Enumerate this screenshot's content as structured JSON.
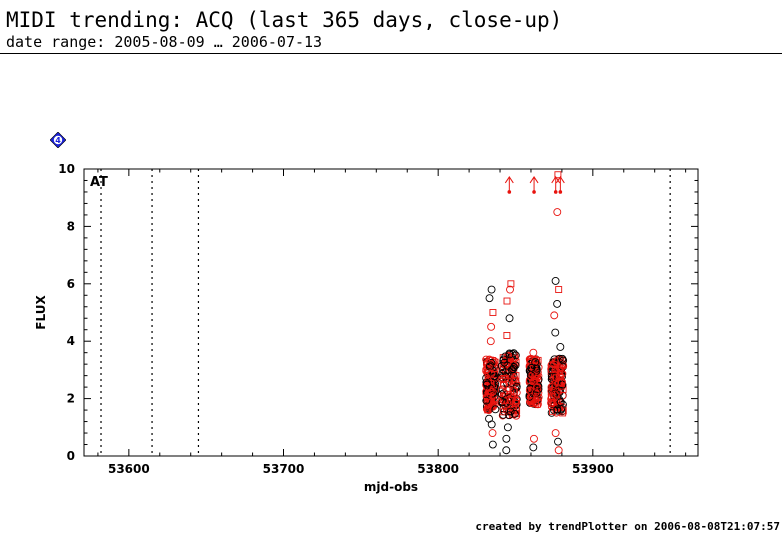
{
  "header": {
    "title": "MIDI trending: ACQ (last 365 days, close-up)",
    "subtitle": "date range: 2005-08-09 … 2006-07-13"
  },
  "badge": {
    "label": "4",
    "color": "#1a22d8",
    "icon": "diamond-badge-icon"
  },
  "footer": {
    "text": "created by trendPlotter on 2006-08-08T21:07:57"
  },
  "chart_data": {
    "type": "scatter",
    "xlabel": "mjd-obs",
    "ylabel": "FLUX",
    "xlim": [
      53571,
      53968
    ],
    "ylim": [
      0,
      10
    ],
    "xticks": [
      53600,
      53700,
      53800,
      53900
    ],
    "yticks": [
      0,
      2,
      4,
      6,
      8,
      10
    ],
    "annotation": "AT",
    "markers": [
      53582,
      53615,
      53645,
      53950
    ],
    "colors": {
      "black_circles": "#000000",
      "red": "#e8140f"
    },
    "clusters": [
      {
        "x_center": 53834,
        "x_width": 6,
        "y_core": [
          1.6,
          3.4
        ],
        "outliers": [
          0.4,
          0.8,
          1.1,
          1.3,
          4.0,
          4.5,
          5.0,
          5.5,
          5.8
        ]
      },
      {
        "x_center": 53846,
        "x_width": 10,
        "y_core": [
          1.4,
          3.6
        ],
        "outliers": [
          0.2,
          0.6,
          1.0,
          4.2,
          4.8,
          5.4,
          5.8,
          6.0
        ]
      },
      {
        "x_center": 53862,
        "x_width": 6,
        "y_core": [
          1.8,
          3.4
        ],
        "outliers": [
          0.3,
          0.6,
          3.6
        ]
      },
      {
        "x_center": 53877,
        "x_width": 8,
        "y_core": [
          1.5,
          3.4
        ],
        "outliers": [
          0.2,
          0.5,
          0.8,
          3.8,
          4.3,
          4.9,
          5.3,
          5.8,
          6.1,
          8.5,
          9.8
        ]
      }
    ],
    "upper_limits": [
      {
        "x": 53846,
        "y": 9.2
      },
      {
        "x": 53862,
        "y": 9.2
      },
      {
        "x": 53876,
        "y": 9.2
      },
      {
        "x": 53879,
        "y": 9.2
      }
    ]
  }
}
